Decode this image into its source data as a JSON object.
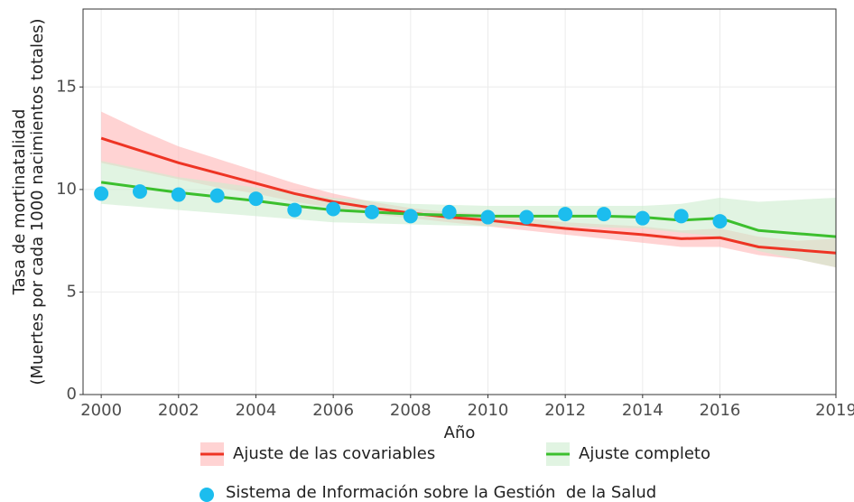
{
  "chart_data": {
    "type": "line",
    "x_label": "Año",
    "y_label": [
      "Tasa de mortinatalidad",
      "(Muertes por cada 1000 nacimientos totales)"
    ],
    "x": [
      2000,
      2001,
      2002,
      2003,
      2004,
      2005,
      2006,
      2007,
      2008,
      2009,
      2010,
      2011,
      2012,
      2013,
      2014,
      2015,
      2016,
      2017,
      2018,
      2019
    ],
    "series": [
      {
        "name": "Ajuste de las covariables",
        "color": "#ee3424",
        "band_color": "#ffb6b6",
        "values": [
          12.5,
          11.9,
          11.3,
          10.8,
          10.3,
          9.8,
          9.4,
          9.1,
          8.85,
          8.65,
          8.5,
          8.3,
          8.1,
          7.95,
          7.8,
          7.6,
          7.65,
          7.2,
          7.05,
          6.9
        ],
        "lower": [
          11.3,
          10.9,
          10.5,
          10.1,
          9.8,
          9.4,
          9.1,
          8.8,
          8.6,
          8.4,
          8.2,
          8.0,
          7.8,
          7.6,
          7.4,
          7.2,
          7.2,
          6.8,
          6.6,
          6.2
        ],
        "upper": [
          13.8,
          12.9,
          12.1,
          11.5,
          10.9,
          10.3,
          9.8,
          9.4,
          9.1,
          8.9,
          8.8,
          8.6,
          8.4,
          8.3,
          8.2,
          8.0,
          8.1,
          7.7,
          7.5,
          7.6
        ]
      },
      {
        "name": "Ajuste completo",
        "color": "#3cbf2e",
        "band_color": "#cdeccf",
        "values": [
          10.35,
          10.1,
          9.85,
          9.65,
          9.45,
          9.2,
          9.0,
          8.9,
          8.8,
          8.75,
          8.7,
          8.7,
          8.7,
          8.7,
          8.65,
          8.5,
          8.6,
          8.0,
          7.85,
          7.7
        ],
        "lower": [
          9.3,
          9.15,
          9.0,
          8.85,
          8.7,
          8.55,
          8.4,
          8.35,
          8.3,
          8.25,
          8.2,
          8.2,
          8.2,
          8.15,
          8.1,
          7.9,
          7.7,
          7.0,
          6.6,
          6.2
        ],
        "upper": [
          11.4,
          11.0,
          10.6,
          10.35,
          10.1,
          9.85,
          9.6,
          9.45,
          9.3,
          9.25,
          9.2,
          9.2,
          9.2,
          9.2,
          9.2,
          9.3,
          9.6,
          9.4,
          9.5,
          9.6
        ]
      }
    ],
    "points": {
      "name": "Sistema de Información sobre la Gestión  de la Salud",
      "color": "#1cbdee",
      "x": [
        2000,
        2001,
        2002,
        2003,
        2004,
        2005,
        2006,
        2007,
        2008,
        2009,
        2010,
        2011,
        2012,
        2013,
        2014,
        2015,
        2016
      ],
      "values": [
        9.8,
        9.9,
        9.75,
        9.7,
        9.55,
        9.0,
        9.05,
        8.9,
        8.7,
        8.9,
        8.65,
        8.65,
        8.8,
        8.8,
        8.6,
        8.7,
        8.45
      ]
    },
    "xlim": [
      1999.53,
      2019
    ],
    "ylim": [
      0,
      18.8
    ],
    "xticks": [
      2000,
      2002,
      2004,
      2006,
      2008,
      2010,
      2012,
      2014,
      2016,
      2019
    ],
    "yticks": [
      0,
      5,
      10,
      15
    ],
    "grid": true
  }
}
